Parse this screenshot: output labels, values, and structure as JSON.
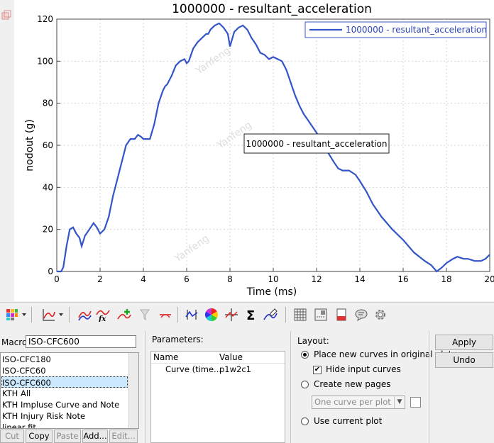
{
  "chart_data": {
    "type": "line",
    "title": "1000000 - resultant_acceleration",
    "xlabel": "Time (ms)",
    "ylabel": "nodout (g)",
    "xlim": [
      0,
      20
    ],
    "ylim": [
      0,
      120
    ],
    "xticks": [
      "0",
      "2",
      "4",
      "6",
      "8",
      "10",
      "12",
      "14",
      "16",
      "18",
      "20"
    ],
    "yticks": [
      "0",
      "20",
      "40",
      "60",
      "80",
      "100",
      "120"
    ],
    "grid": true,
    "legend_position": "top-right",
    "annotation": "1000000 - resultant_acceleration",
    "color": "#3355c8",
    "series": [
      {
        "name": "1000000 - resultant_acceleration",
        "x": [
          0,
          0.2,
          0.3,
          0.45,
          0.6,
          0.75,
          0.9,
          1.05,
          1.15,
          1.3,
          1.5,
          1.7,
          1.85,
          2.0,
          2.2,
          2.4,
          2.6,
          2.8,
          3.0,
          3.2,
          3.4,
          3.6,
          3.75,
          3.9,
          4.0,
          4.1,
          4.3,
          4.5,
          4.7,
          4.9,
          5.0,
          5.1,
          5.3,
          5.5,
          5.7,
          5.9,
          6.0,
          6.1,
          6.3,
          6.5,
          6.7,
          6.9,
          7.0,
          7.1,
          7.3,
          7.5,
          7.7,
          7.9,
          8.0,
          8.2,
          8.4,
          8.6,
          8.8,
          9.0,
          9.2,
          9.4,
          9.6,
          9.8,
          10.0,
          10.2,
          10.4,
          10.6,
          10.8,
          11.0,
          11.2,
          11.4,
          11.6,
          11.8,
          12.0,
          12.2,
          12.5,
          12.8,
          13.0,
          13.2,
          13.5,
          13.8,
          14.0,
          14.3,
          14.6,
          15.0,
          15.5,
          16.0,
          16.5,
          17.0,
          17.3,
          17.55,
          17.8,
          18.0,
          18.3,
          18.5,
          18.8,
          19.0,
          19.3,
          19.6,
          19.8,
          20.0
        ],
        "y": [
          0,
          0,
          2,
          12,
          20,
          21,
          18,
          16,
          12,
          17,
          20,
          23,
          21,
          18,
          20,
          26,
          36,
          44,
          52,
          60,
          63,
          63,
          65,
          64,
          63,
          63,
          63,
          70,
          80,
          86,
          88,
          89,
          93,
          98,
          100,
          101,
          99,
          100,
          106,
          109,
          111,
          113,
          113,
          115,
          117,
          118,
          116,
          113,
          107,
          114,
          116,
          117,
          115,
          111,
          108,
          104,
          103,
          101,
          102,
          101,
          100,
          96,
          90,
          84,
          79,
          75,
          72,
          69,
          66,
          63,
          57,
          52,
          49,
          48,
          48,
          46,
          43,
          38,
          32,
          26,
          20,
          15,
          9,
          5,
          3,
          0,
          2,
          4,
          6,
          7,
          6,
          6,
          5,
          5,
          6,
          8
        ]
      }
    ]
  },
  "watermark": "Yanfeng",
  "toolbar": {
    "icons": [
      "multicolor-grid-icon",
      "dropdown-arrow-icon",
      "curve-type-icon",
      "dropdown-arrow-icon",
      "curve-list-icon",
      "curve-fx-icon",
      "add-curve-icon",
      "curve-filter-icon",
      "curve-trim-icon",
      "peak-curve-icon",
      "color-wheel-icon",
      "crosshair-curve-icon",
      "sigma-icon",
      "curve-pen-icon",
      "grid-icon",
      "dotted-grid-icon",
      "page-icon",
      "note-icon",
      "gear-icon"
    ]
  },
  "macro": {
    "label": "Macro:",
    "value": "ISO-CFC600",
    "items": [
      "ISO-CFC180",
      "ISO-CFC60",
      "ISO-CFC600",
      "KTH All",
      "KTH Impluse Curve and Note",
      "KTH Injury Risk Note",
      "linear fit"
    ],
    "selected_index": 2,
    "buttons": {
      "cut": "Cut",
      "copy": "Copy",
      "paste": "Paste",
      "add": "Add...",
      "edit": "Edit..."
    }
  },
  "parameters": {
    "label": "Parameters:",
    "headers": {
      "name": "Name",
      "value": "Value"
    },
    "rows": [
      {
        "name": "Curve (time...",
        "value": "p1w2c1"
      }
    ]
  },
  "layout": {
    "label": "Layout:",
    "opt_original": "Place new curves in original plot",
    "opt_hide": "Hide input curves",
    "opt_new_pages": "Create new pages",
    "select_value": "One curve per plot",
    "opt_current": "Use current plot"
  },
  "actions": {
    "apply": "Apply",
    "undo": "Undo"
  }
}
